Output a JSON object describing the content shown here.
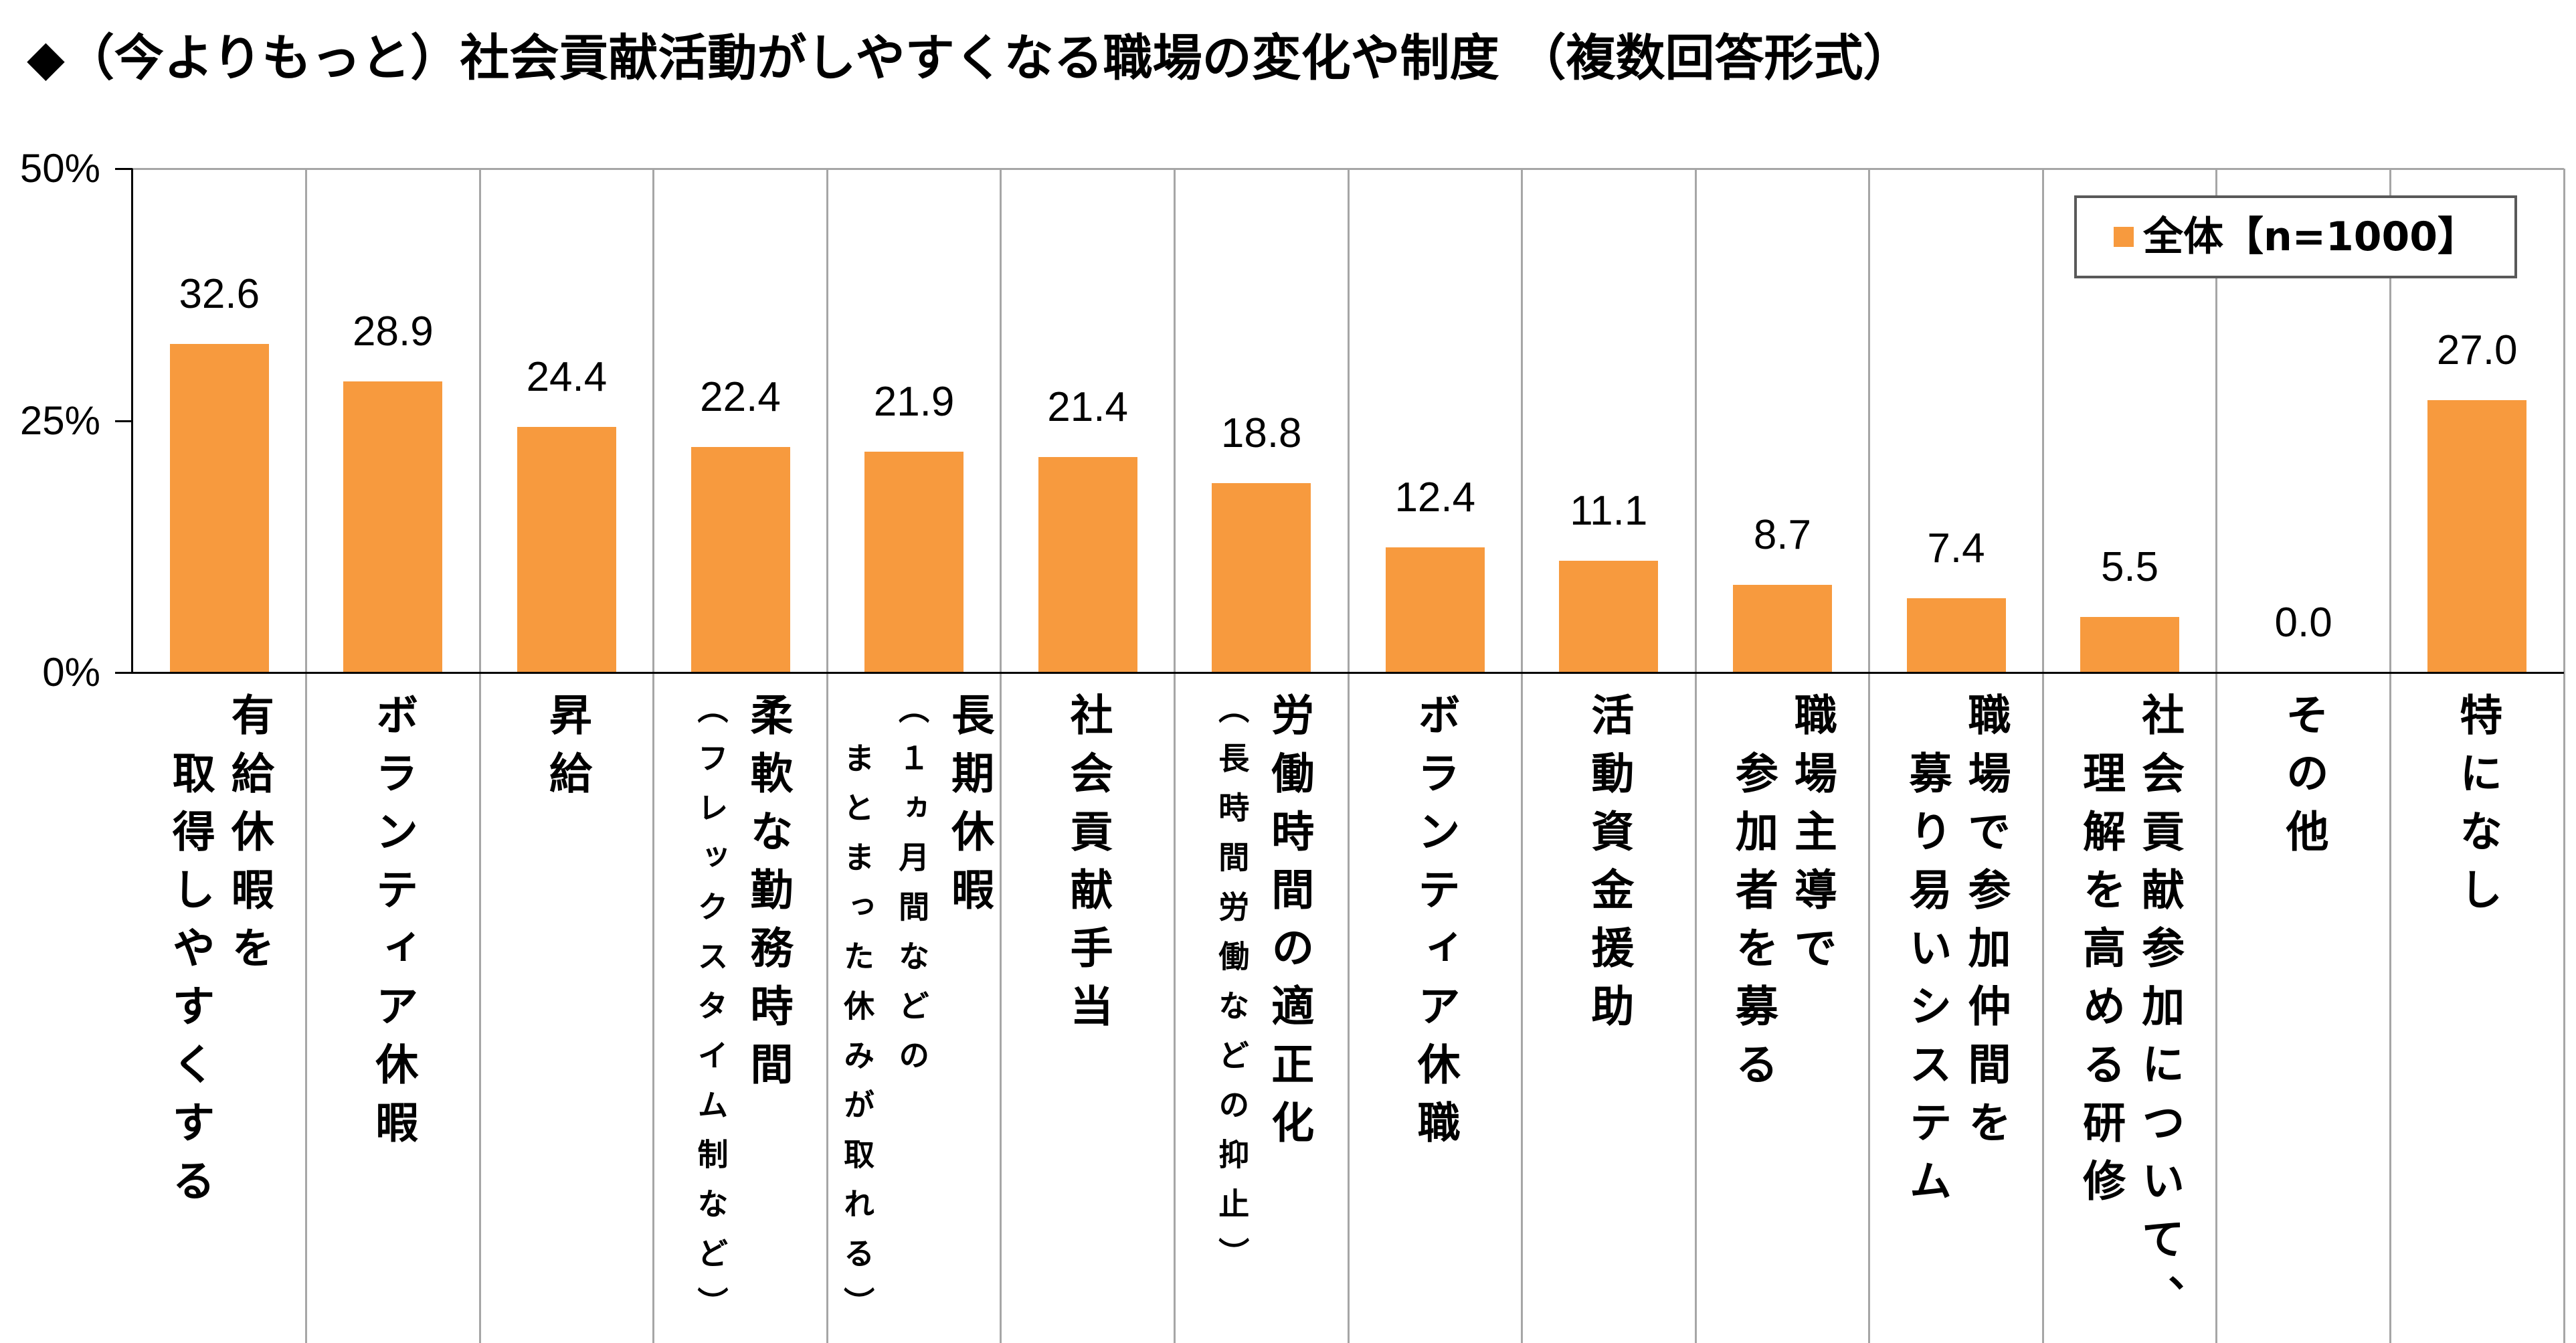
{
  "chart_data": {
    "type": "bar",
    "title": "◆（今よりもっと）社会貢献活動がしやすくなる職場の変化や制度 （複数回答形式）",
    "categories": [
      {
        "lines": [
          "有給休暇を",
          "取得しやすくする"
        ],
        "notes": []
      },
      {
        "lines": [
          "ボランティア休暇"
        ],
        "notes": []
      },
      {
        "lines": [
          "昇給"
        ],
        "notes": []
      },
      {
        "lines": [
          "柔軟な勤務時間"
        ],
        "notes": [
          "（フレックスタイム制など）"
        ]
      },
      {
        "lines": [
          "長期休暇"
        ],
        "notes": [
          "（１ヵ月間などの",
          "まとまった休みが取れる）"
        ]
      },
      {
        "lines": [
          "社会貢献手当"
        ],
        "notes": []
      },
      {
        "lines": [
          "労働時間の適正化"
        ],
        "notes": [
          "（長時間労働などの抑止）"
        ]
      },
      {
        "lines": [
          "ボランティア休職"
        ],
        "notes": []
      },
      {
        "lines": [
          "活動資金援助"
        ],
        "notes": []
      },
      {
        "lines": [
          "職場主導で",
          "参加者を募る"
        ],
        "notes": []
      },
      {
        "lines": [
          "職場で参加仲間を",
          "募り易いシステム"
        ],
        "notes": []
      },
      {
        "lines": [
          "社会貢献参加について、",
          "理解を高める研修"
        ],
        "notes": []
      },
      {
        "lines": [
          "その他"
        ],
        "notes": []
      },
      {
        "lines": [
          "特になし"
        ],
        "notes": []
      }
    ],
    "series": [
      {
        "name": "全体【n=1000】",
        "color": "#F79A3E",
        "values": [
          32.6,
          28.9,
          24.4,
          22.4,
          21.9,
          21.4,
          18.8,
          12.4,
          11.1,
          8.7,
          7.4,
          5.5,
          0.0,
          27.0
        ]
      }
    ],
    "data_labels": [
      "32.6",
      "28.9",
      "24.4",
      "22.4",
      "21.9",
      "21.4",
      "18.8",
      "12.4",
      "11.1",
      "8.7",
      "7.4",
      "5.5",
      "0.0",
      "27.0"
    ],
    "ylim": [
      0,
      50
    ],
    "yticks": [
      0,
      25,
      50
    ],
    "ytick_labels": [
      "0%",
      "25%",
      "50%"
    ],
    "legend": "top-right",
    "grid": {
      "horizontal": false,
      "vertical": true
    }
  },
  "colors": {
    "grid": "#A6A6A6",
    "axis": "#000000",
    "legend_border": "#595959"
  }
}
